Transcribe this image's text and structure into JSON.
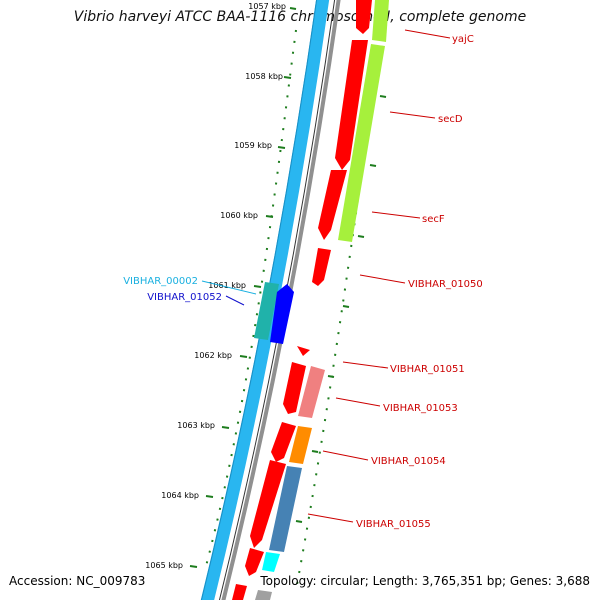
{
  "title": "Vibrio harveyi ATCC BAA-1116 chromosome I, complete genome",
  "footer": {
    "accession": "Accession: NC_009783",
    "topology": "Topology: circular; Length: 3,765,351 bp; Genes: 3,688"
  },
  "colors": {
    "backbone_blue": "#29b6f0",
    "backbone_gray": "#888888",
    "gene_red": "#ff0000",
    "gene_lightgreen": "#a6f03c",
    "gene_pink": "#f08080",
    "gene_orange": "#ff8c00",
    "gene_steelblue": "#4682b4",
    "gene_cyan": "#00ffff",
    "gene_teal": "#20b2aa",
    "gene_blue": "#0000ff",
    "tick_green": "#1e7d1e",
    "label_red": "#cc0000",
    "label_cyan": "#1ab0e0",
    "label_blue": "#1010cc"
  },
  "ticks": [
    {
      "label": "1057 kbp"
    },
    {
      "label": "1058 kbp"
    },
    {
      "label": "1059 kbp"
    },
    {
      "label": "1060 kbp"
    },
    {
      "label": "1061 kbp"
    },
    {
      "label": "1062 kbp"
    },
    {
      "label": "1063 kbp"
    },
    {
      "label": "1064 kbp"
    },
    {
      "label": "1065 kbp"
    }
  ],
  "gene_labels_right": [
    {
      "name": "yajC"
    },
    {
      "name": "secD"
    },
    {
      "name": "secF"
    },
    {
      "name": "VIBHAR_01050"
    },
    {
      "name": "VIBHAR_01051"
    },
    {
      "name": "VIBHAR_01053"
    },
    {
      "name": "VIBHAR_01054"
    },
    {
      "name": "VIBHAR_01055"
    }
  ],
  "gene_labels_left": [
    {
      "name": "VIBHAR_00002"
    },
    {
      "name": "VIBHAR_01052"
    }
  ]
}
